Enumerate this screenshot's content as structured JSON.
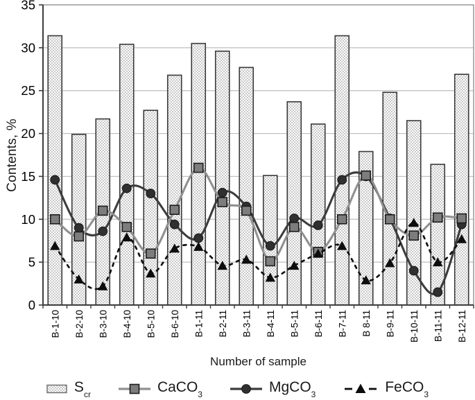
{
  "chart_data": {
    "type": "combo",
    "title": "",
    "xlabel": "Number of sample",
    "ylabel": "Contents, %",
    "ylim": [
      0,
      35
    ],
    "ytick_step": 5,
    "grid": "horizontal",
    "legend_position": "bottom",
    "categories": [
      "B-1-10",
      "B-2-10",
      "B-3-10",
      "B-4-10",
      "B-5-10",
      "B-6-10",
      "B-1-11",
      "B-2-11",
      "B-3-11",
      "B-4-11",
      "B-5-11",
      "B-6-11",
      "B-7-11",
      "B 8-11",
      "B-9-11",
      "B-10-11",
      "B-11-11",
      "B-12-11"
    ],
    "series": [
      {
        "name": "Scr",
        "label_main": "S",
        "label_sub": "cr",
        "type": "bar",
        "values": [
          31.4,
          19.9,
          21.7,
          30.4,
          22.7,
          26.8,
          30.5,
          29.6,
          27.7,
          15.1,
          23.7,
          21.1,
          31.4,
          17.9,
          24.8,
          21.5,
          16.4,
          26.9
        ],
        "fill": "pattern-dots",
        "stroke": "#3a3a3a"
      },
      {
        "name": "CaCO3",
        "label_main": "CaCO",
        "label_sub": "3",
        "type": "line",
        "marker": "square",
        "values": [
          10.0,
          8.0,
          11.0,
          9.1,
          6.0,
          11.1,
          16.0,
          12.0,
          11.0,
          5.1,
          9.1,
          6.2,
          10.0,
          15.1,
          10.0,
          8.1,
          10.2,
          10.1
        ],
        "color": "#909090",
        "marker_fill": "#7d7d7d",
        "marker_stroke": "#1c1c1c",
        "dashed": false
      },
      {
        "name": "MgCO3",
        "label_main": "MgCO",
        "label_sub": "3",
        "type": "line",
        "marker": "circle",
        "values": [
          14.6,
          9.0,
          8.6,
          13.6,
          13.0,
          9.4,
          7.8,
          13.1,
          11.5,
          6.9,
          10.1,
          9.3,
          14.6,
          15.0,
          10.1,
          4.0,
          1.5,
          9.4
        ],
        "color": "#3d3d3d",
        "marker_fill": "#303030",
        "marker_stroke": "#1c1c1c",
        "dashed": false
      },
      {
        "name": "FeCO3",
        "label_main": "FeCO",
        "label_sub": "3",
        "type": "line",
        "marker": "triangle",
        "values": [
          6.9,
          3.0,
          2.2,
          7.9,
          3.7,
          6.6,
          6.8,
          4.6,
          5.3,
          3.2,
          4.6,
          6.0,
          6.9,
          2.9,
          4.9,
          9.6,
          5.0,
          7.7
        ],
        "color": "#111111",
        "marker_fill": "#0d0d0d",
        "marker_stroke": "#0d0d0d",
        "dashed": true
      }
    ]
  },
  "styles": {
    "grid_color": "#bdbdbd",
    "border_color": "#929292",
    "axis_color": "#3c3c3c",
    "tick_label_color": "#000000",
    "bar_dot_color": "#c8c8c8",
    "bar_bg_color": "#ffffff"
  }
}
